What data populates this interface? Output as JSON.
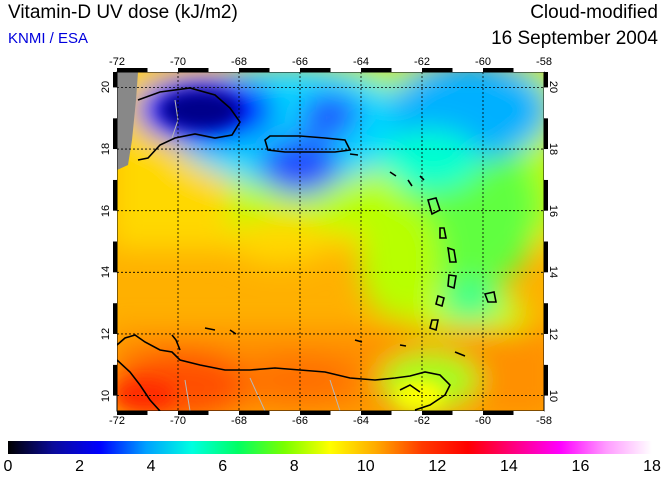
{
  "header": {
    "title": "Vitamin-D UV dose (kJ/m2)",
    "agency": "KNMI / ESA",
    "mode": "Cloud-modified",
    "date": "16 September 2004"
  },
  "map": {
    "lon_range": [
      -72,
      -58
    ],
    "lat_range": [
      9.5,
      20.5
    ],
    "lon_ticks": [
      "-72",
      "-70",
      "-68",
      "-66",
      "-64",
      "-62",
      "-60",
      "-58"
    ],
    "lat_ticks": [
      "10",
      "12",
      "14",
      "16",
      "18",
      "20"
    ],
    "grid": true
  },
  "colorbar": {
    "range": [
      0,
      18
    ],
    "tick_labels": [
      "0",
      "2",
      "4",
      "6",
      "8",
      "10",
      "12",
      "14",
      "16",
      "18"
    ],
    "colors": [
      "#000000",
      "#0a0a9c",
      "#0000ff",
      "#00a0ff",
      "#00ffe0",
      "#00ff64",
      "#78ff00",
      "#ffff00",
      "#ffaa00",
      "#ff3a00",
      "#ff0000",
      "#ff0080",
      "#ff00ff",
      "#ff9aff",
      "#ffffff"
    ]
  },
  "colors": {
    "agency_text": "#0000dd",
    "land_mask": "#888888"
  }
}
